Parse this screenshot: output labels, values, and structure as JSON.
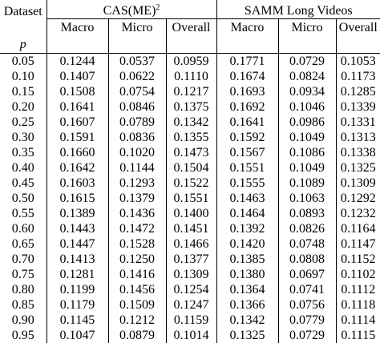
{
  "table": {
    "dataset_header": "Dataset",
    "p_label": "p",
    "group_1": {
      "name": "CAS(ME)",
      "superscript": "2"
    },
    "group_2": {
      "name": "SAMM Long Videos"
    },
    "subheaders": [
      "Macro",
      "Micro",
      "Overall",
      "Macro",
      "Micro",
      "Overall"
    ],
    "rows": [
      {
        "p": "0.05",
        "values": [
          "0.1244",
          "0.0537",
          "0.0959",
          "0.1771",
          "0.0729",
          "0.1053"
        ],
        "bold": [
          false,
          false,
          false,
          true,
          false,
          false
        ]
      },
      {
        "p": "0.10",
        "values": [
          "0.1407",
          "0.0622",
          "0.1110",
          "0.1674",
          "0.0824",
          "0.1173"
        ],
        "bold": [
          false,
          false,
          false,
          false,
          false,
          false
        ]
      },
      {
        "p": "0.15",
        "values": [
          "0.1508",
          "0.0754",
          "0.1217",
          "0.1693",
          "0.0934",
          "0.1285"
        ],
        "bold": [
          false,
          false,
          false,
          false,
          false,
          false
        ]
      },
      {
        "p": "0.20",
        "values": [
          "0.1641",
          "0.0846",
          "0.1375",
          "0.1692",
          "0.1046",
          "0.1339"
        ],
        "bold": [
          false,
          false,
          false,
          false,
          false,
          true
        ]
      },
      {
        "p": "0.25",
        "values": [
          "0.1607",
          "0.0789",
          "0.1342",
          "0.1641",
          "0.0986",
          "0.1331"
        ],
        "bold": [
          false,
          false,
          false,
          false,
          false,
          false
        ]
      },
      {
        "p": "0.30",
        "values": [
          "0.1591",
          "0.0836",
          "0.1355",
          "0.1592",
          "0.1049",
          "0.1313"
        ],
        "bold": [
          false,
          false,
          false,
          false,
          false,
          false
        ]
      },
      {
        "p": "0.35",
        "values": [
          "0.1660",
          "0.1020",
          "0.1473",
          "0.1567",
          "0.1086",
          "0.1338"
        ],
        "bold": [
          false,
          true,
          false,
          false,
          false,
          true
        ]
      },
      {
        "p": "0.40",
        "values": [
          "0.1642",
          "0.1144",
          "0.1504",
          "0.1551",
          "0.1049",
          "0.1325"
        ],
        "bold": [
          false,
          false,
          false,
          false,
          false,
          false
        ]
      },
      {
        "p": "0.45",
        "values": [
          "0.1603",
          "0.1293",
          "0.1522",
          "0.1555",
          "0.1089",
          "0.1309"
        ],
        "bold": [
          false,
          false,
          false,
          false,
          false,
          false
        ]
      },
      {
        "p": "0.50",
        "values": [
          "0.1615",
          "0.1379",
          "0.1551",
          "0.1463",
          "0.1063",
          "0.1292"
        ],
        "bold": [
          false,
          false,
          true,
          false,
          false,
          false
        ]
      },
      {
        "p": "0.55",
        "values": [
          "0.1389",
          "0.1436",
          "0.1400",
          "0.1464",
          "0.0893",
          "0.1232"
        ],
        "bold": [
          false,
          false,
          false,
          false,
          false,
          false
        ]
      },
      {
        "p": "0.60",
        "values": [
          "0.1443",
          "0.1472",
          "0.1451",
          "0.1392",
          "0.0826",
          "0.1164"
        ],
        "bold": [
          false,
          false,
          false,
          false,
          false,
          false
        ]
      },
      {
        "p": "0.65",
        "values": [
          "0.1447",
          "0.1528",
          "0.1466",
          "0.1420",
          "0.0748",
          "0.1147"
        ],
        "bold": [
          false,
          true,
          false,
          false,
          false,
          false
        ]
      },
      {
        "p": "0.70",
        "values": [
          "0.1413",
          "0.1250",
          "0.1377",
          "0.1385",
          "0.0808",
          "0.1152"
        ],
        "bold": [
          false,
          false,
          false,
          false,
          false,
          false
        ]
      },
      {
        "p": "0.75",
        "values": [
          "0.1281",
          "0.1416",
          "0.1309",
          "0.1380",
          "0.0697",
          "0.1102"
        ],
        "bold": [
          false,
          false,
          false,
          false,
          false,
          false
        ]
      },
      {
        "p": "0.80",
        "values": [
          "0.1199",
          "0.1456",
          "0.1254",
          "0.1364",
          "0.0741",
          "0.1112"
        ],
        "bold": [
          false,
          false,
          false,
          false,
          false,
          false
        ]
      },
      {
        "p": "0.85",
        "values": [
          "0.1179",
          "0.1509",
          "0.1247",
          "0.1366",
          "0.0756",
          "0.1118"
        ],
        "bold": [
          false,
          false,
          false,
          false,
          false,
          false
        ]
      },
      {
        "p": "0.90",
        "values": [
          "0.1145",
          "0.1212",
          "0.1159",
          "0.1342",
          "0.0779",
          "0.1114"
        ],
        "bold": [
          false,
          false,
          false,
          false,
          false,
          false
        ]
      },
      {
        "p": "0.95",
        "values": [
          "0.1047",
          "0.0879",
          "0.1014",
          "0.1325",
          "0.0729",
          "0.1115"
        ],
        "bold": [
          false,
          false,
          false,
          false,
          false,
          false
        ]
      }
    ]
  }
}
